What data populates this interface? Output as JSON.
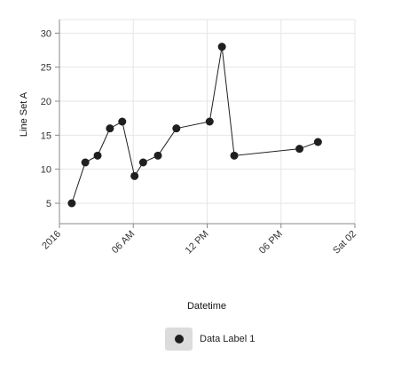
{
  "chart_data": {
    "type": "line",
    "xlabel": "Datetime",
    "ylabel": "Line Set A",
    "x_ticks": [
      "2016",
      "06 AM",
      "12 PM",
      "06 PM",
      "Sat 02"
    ],
    "y_ticks": [
      5,
      10,
      15,
      20,
      25,
      30
    ],
    "xlim_hours": [
      0,
      24
    ],
    "ylim": [
      2,
      32
    ],
    "grid": true,
    "legend_position": "bottom",
    "series": [
      {
        "name": "Data Label 1",
        "color": "#1f1f1f",
        "x_hours": [
          1.0,
          2.1,
          3.1,
          4.1,
          5.1,
          6.1,
          6.8,
          8.0,
          9.5,
          12.2,
          13.2,
          14.2,
          19.5,
          21.0
        ],
        "values": [
          5,
          11,
          12,
          16,
          17,
          9,
          11,
          12,
          16,
          17,
          28,
          12,
          13,
          14
        ]
      }
    ]
  }
}
